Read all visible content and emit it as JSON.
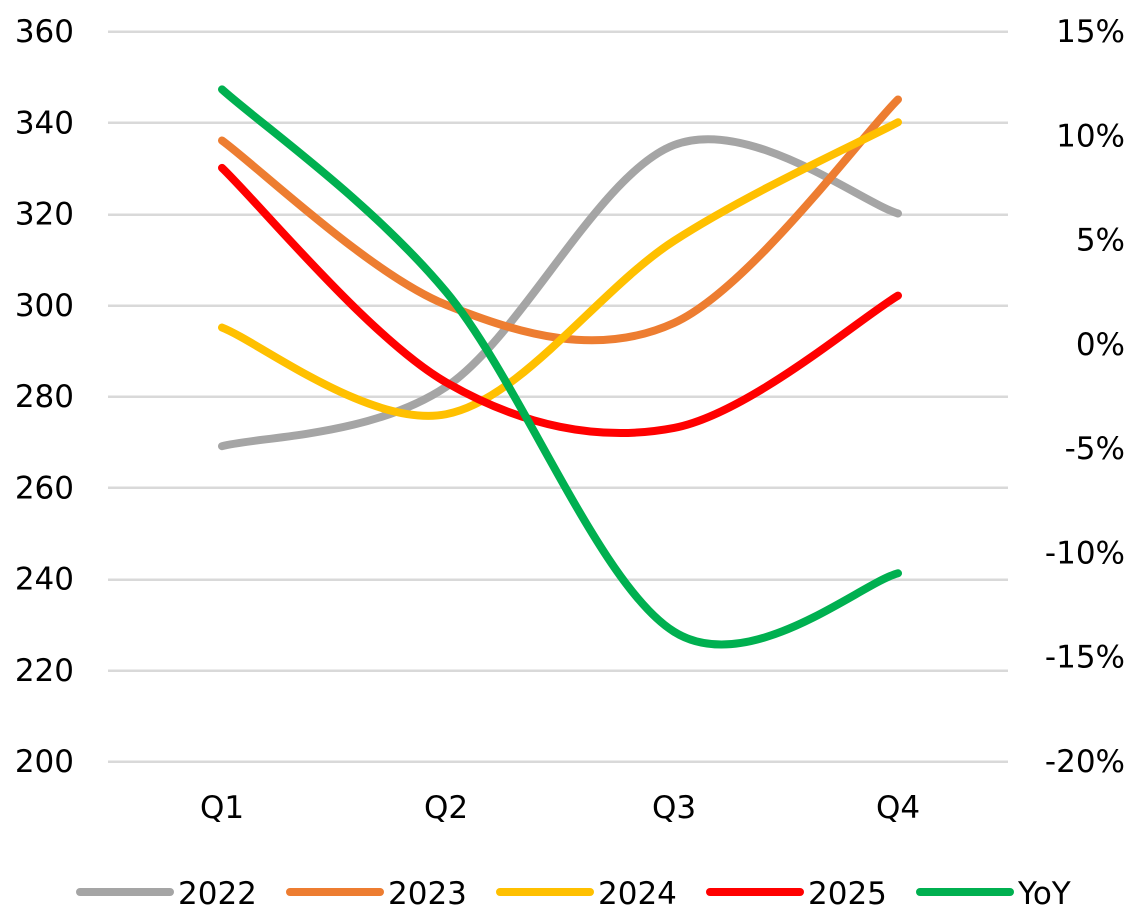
{
  "chart_data": {
    "type": "line",
    "categories": [
      "Q1",
      "Q2",
      "Q3",
      "Q4"
    ],
    "y_left": {
      "range": [
        200,
        360
      ],
      "ticks": [
        360,
        340,
        320,
        300,
        280,
        260,
        240,
        220,
        200
      ]
    },
    "y_right": {
      "range": [
        -0.2,
        0.15
      ],
      "ticks": [
        {
          "value": 0.15,
          "label": "15%"
        },
        {
          "value": 0.1,
          "label": "10%"
        },
        {
          "value": 0.05,
          "label": "5%"
        },
        {
          "value": 0.0,
          "label": "0%"
        },
        {
          "value": -0.05,
          "label": "-5%"
        },
        {
          "value": -0.1,
          "label": "-10%"
        },
        {
          "value": -0.15,
          "label": "-15%"
        },
        {
          "value": -0.2,
          "label": "-20%"
        }
      ]
    },
    "grid": true,
    "smooth": true,
    "legend_position": "bottom",
    "series": [
      {
        "name": "2022",
        "axis": "left",
        "color": "#a5a5a5",
        "values": [
          269,
          282,
          335,
          320
        ]
      },
      {
        "name": "2023",
        "axis": "left",
        "color": "#ed7d31",
        "values": [
          336,
          300,
          296,
          345
        ]
      },
      {
        "name": "2024",
        "axis": "left",
        "color": "#ffc000",
        "values": [
          295,
          276,
          314,
          340
        ]
      },
      {
        "name": "2025",
        "axis": "left",
        "color": "#ff0000",
        "values": [
          330,
          283,
          273,
          302
        ]
      },
      {
        "name": "YoY",
        "axis": "right",
        "color": "#00b050",
        "values": [
          0.122,
          0.025,
          -0.138,
          -0.11
        ]
      }
    ]
  }
}
